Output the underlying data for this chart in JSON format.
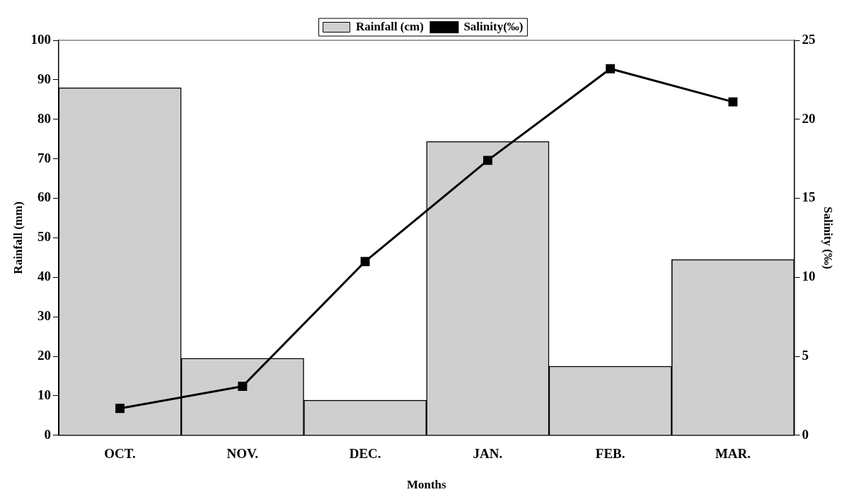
{
  "chart_data": {
    "type": "bar",
    "xlabel": "Months",
    "ylabel": "Rainfall (mm)",
    "y2label": "Salinity (‰)",
    "categories": [
      "OCT.",
      "NOV.",
      "DEC.",
      "JAN.",
      "FEB.",
      "MAR."
    ],
    "series": [
      {
        "name": "Rainfall (cm)",
        "color": "#cfcfcf",
        "values": [
          88,
          19.5,
          8.9,
          74.4,
          17.5,
          44.5
        ]
      },
      {
        "name": "Salinity(‰)",
        "type": "line",
        "axis": "y2",
        "color": "#000000",
        "marker": "square",
        "values": [
          1.7,
          3.1,
          11.0,
          17.4,
          23.2,
          21.1
        ]
      }
    ],
    "ylim": [
      0,
      100
    ],
    "yticks": [
      0,
      10,
      20,
      30,
      40,
      50,
      60,
      70,
      80,
      90,
      100
    ],
    "y2lim": [
      0,
      25
    ],
    "y2ticks": [
      0,
      5,
      10,
      15,
      20,
      25
    ],
    "grid": false,
    "legend": "top"
  }
}
